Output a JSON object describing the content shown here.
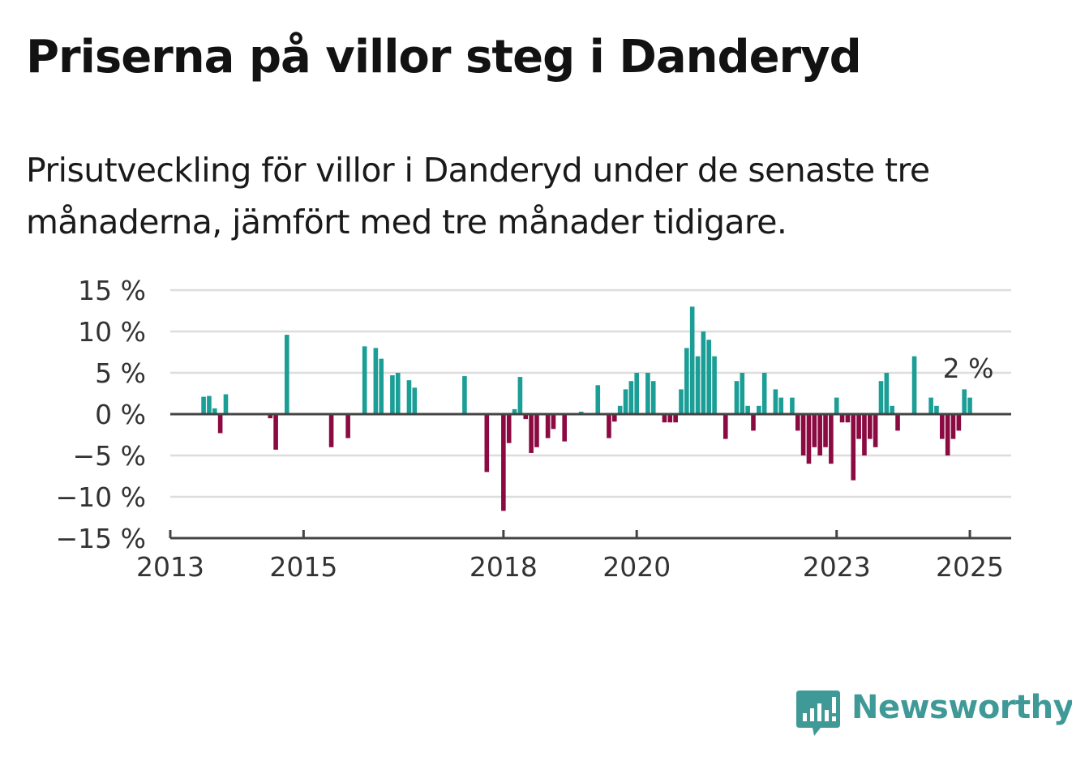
{
  "title": "Priserna på villor steg i Danderyd",
  "subtitle": "Prisutveckling för villor i Danderyd under de senaste tre månaderna, jämfört med tre månader tidigare.",
  "brand": {
    "name": "Newsworthy",
    "icon": "newsworthy-bar-chart-logo-icon"
  },
  "colors": {
    "positive": "#1a9e96",
    "negative": "#8b0a41",
    "grid": "#dddddd",
    "axis": "#444444"
  },
  "chart_data": {
    "type": "bar",
    "yticks": [
      "−15 %",
      "−10 %",
      "−5 %",
      "0 %",
      "5 %",
      "10 %",
      "15 %"
    ],
    "ylim": [
      -15,
      15
    ],
    "xticks": [
      "2013",
      "2015",
      "2018",
      "2020",
      "2023",
      "2025"
    ],
    "xlim": [
      2013.0,
      2025.62
    ],
    "last_value_label": "2 %",
    "series": [
      {
        "values": [
          {
            "x": "2013-07",
            "y": 2.1
          },
          {
            "x": "2013-08",
            "y": 2.2
          },
          {
            "x": "2013-09",
            "y": 0.7
          },
          {
            "x": "2013-10",
            "y": -2.3
          },
          {
            "x": "2013-11",
            "y": 2.4
          },
          {
            "x": "2014-07",
            "y": -0.5
          },
          {
            "x": "2014-08",
            "y": -4.3
          },
          {
            "x": "2014-10",
            "y": 9.6
          },
          {
            "x": "2015-06",
            "y": -4.0
          },
          {
            "x": "2015-09",
            "y": -2.9
          },
          {
            "x": "2015-12",
            "y": 8.2
          },
          {
            "x": "2016-02",
            "y": 8.0
          },
          {
            "x": "2016-03",
            "y": 6.7
          },
          {
            "x": "2016-05",
            "y": 4.7
          },
          {
            "x": "2016-06",
            "y": 5.0
          },
          {
            "x": "2016-08",
            "y": 4.1
          },
          {
            "x": "2016-09",
            "y": 3.2
          },
          {
            "x": "2017-06",
            "y": 4.6
          },
          {
            "x": "2017-10",
            "y": -7.0
          },
          {
            "x": "2018-01",
            "y": -11.7
          },
          {
            "x": "2018-02",
            "y": -3.5
          },
          {
            "x": "2018-03",
            "y": 0.6
          },
          {
            "x": "2018-04",
            "y": 4.5
          },
          {
            "x": "2018-05",
            "y": -0.6
          },
          {
            "x": "2018-06",
            "y": -4.7
          },
          {
            "x": "2018-07",
            "y": -4.0
          },
          {
            "x": "2018-09",
            "y": -2.9
          },
          {
            "x": "2018-10",
            "y": -1.8
          },
          {
            "x": "2018-12",
            "y": -3.3
          },
          {
            "x": "2019-03",
            "y": 0.3
          },
          {
            "x": "2019-06",
            "y": 3.5
          },
          {
            "x": "2019-08",
            "y": -2.9
          },
          {
            "x": "2019-09",
            "y": -0.9
          },
          {
            "x": "2019-10",
            "y": 1.0
          },
          {
            "x": "2019-11",
            "y": 3.0
          },
          {
            "x": "2019-12",
            "y": 4.0
          },
          {
            "x": "2020-01",
            "y": 5.0
          },
          {
            "x": "2020-03",
            "y": 5.0
          },
          {
            "x": "2020-04",
            "y": 4.0
          },
          {
            "x": "2020-06",
            "y": -1.0
          },
          {
            "x": "2020-07",
            "y": -1.0
          },
          {
            "x": "2020-08",
            "y": -1.0
          },
          {
            "x": "2020-09",
            "y": 3.0
          },
          {
            "x": "2020-10",
            "y": 8.0
          },
          {
            "x": "2020-11",
            "y": 13.0
          },
          {
            "x": "2020-12",
            "y": 7.0
          },
          {
            "x": "2021-01",
            "y": 10.0
          },
          {
            "x": "2021-02",
            "y": 9.0
          },
          {
            "x": "2021-03",
            "y": 7.0
          },
          {
            "x": "2021-05",
            "y": -3.0
          },
          {
            "x": "2021-07",
            "y": 4.0
          },
          {
            "x": "2021-08",
            "y": 5.0
          },
          {
            "x": "2021-09",
            "y": 1.0
          },
          {
            "x": "2021-10",
            "y": -2.0
          },
          {
            "x": "2021-11",
            "y": 1.0
          },
          {
            "x": "2021-12",
            "y": 5.0
          },
          {
            "x": "2022-02",
            "y": 3.0
          },
          {
            "x": "2022-03",
            "y": 2.0
          },
          {
            "x": "2022-05",
            "y": 2.0
          },
          {
            "x": "2022-06",
            "y": -2.0
          },
          {
            "x": "2022-07",
            "y": -5.0
          },
          {
            "x": "2022-08",
            "y": -6.0
          },
          {
            "x": "2022-09",
            "y": -4.0
          },
          {
            "x": "2022-10",
            "y": -5.0
          },
          {
            "x": "2022-11",
            "y": -4.0
          },
          {
            "x": "2022-12",
            "y": -6.0
          },
          {
            "x": "2023-01",
            "y": 2.0
          },
          {
            "x": "2023-02",
            "y": -1.0
          },
          {
            "x": "2023-03",
            "y": -1.0
          },
          {
            "x": "2023-04",
            "y": -8.0
          },
          {
            "x": "2023-05",
            "y": -3.0
          },
          {
            "x": "2023-06",
            "y": -5.0
          },
          {
            "x": "2023-07",
            "y": -3.0
          },
          {
            "x": "2023-08",
            "y": -4.0
          },
          {
            "x": "2023-09",
            "y": 4.0
          },
          {
            "x": "2023-10",
            "y": 5.0
          },
          {
            "x": "2023-11",
            "y": 1.0
          },
          {
            "x": "2023-12",
            "y": -2.0
          },
          {
            "x": "2024-03",
            "y": 7.0
          },
          {
            "x": "2024-06",
            "y": 2.0
          },
          {
            "x": "2024-07",
            "y": 1.0
          },
          {
            "x": "2024-08",
            "y": -3.0
          },
          {
            "x": "2024-09",
            "y": -5.0
          },
          {
            "x": "2024-10",
            "y": -3.0
          },
          {
            "x": "2024-11",
            "y": -2.0
          },
          {
            "x": "2024-12",
            "y": 3.0
          },
          {
            "x": "2025-01",
            "y": 2.0
          }
        ]
      }
    ]
  }
}
